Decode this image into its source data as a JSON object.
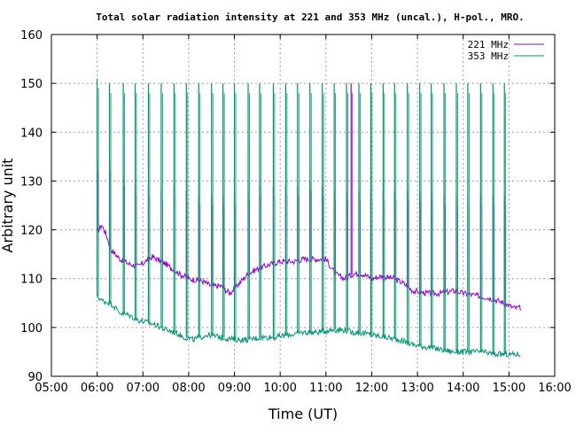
{
  "chart_data": {
    "type": "line",
    "title": "Total solar radiation intensity at 221 and 353 MHz (uncal.), H-pol., MRO.",
    "xlabel": "Time (UT)",
    "ylabel": "Arbitrary unit",
    "xlim": [
      5.0,
      16.0
    ],
    "ylim": [
      90,
      160
    ],
    "x_ticks": [
      "05:00",
      "06:00",
      "07:00",
      "08:00",
      "09:00",
      "10:00",
      "11:00",
      "12:00",
      "13:00",
      "14:00",
      "15:00",
      "16:00"
    ],
    "y_ticks": [
      "90",
      "100",
      "110",
      "120",
      "130",
      "140",
      "150",
      "160"
    ],
    "grid": true,
    "legend_position": "top-right",
    "series": [
      {
        "name": "221 MHz",
        "color": "#9400d3",
        "baseline": [
          [
            6.0,
            119.5
          ],
          [
            6.1,
            121
          ],
          [
            6.2,
            119
          ],
          [
            6.3,
            116
          ],
          [
            6.5,
            114
          ],
          [
            6.7,
            113
          ],
          [
            6.9,
            112.5
          ],
          [
            7.2,
            114.5
          ],
          [
            7.5,
            113
          ],
          [
            7.8,
            111
          ],
          [
            8.0,
            110
          ],
          [
            8.3,
            109.5
          ],
          [
            8.5,
            108.5
          ],
          [
            8.7,
            108.5
          ],
          [
            8.9,
            107
          ],
          [
            9.1,
            109
          ],
          [
            9.3,
            111
          ],
          [
            9.5,
            112
          ],
          [
            9.8,
            113
          ],
          [
            10.0,
            113.5
          ],
          [
            10.3,
            113.5
          ],
          [
            10.5,
            114
          ],
          [
            10.8,
            114
          ],
          [
            11.0,
            114
          ],
          [
            11.2,
            111
          ],
          [
            11.4,
            110
          ],
          [
            11.6,
            111
          ],
          [
            11.8,
            111
          ],
          [
            12.0,
            110
          ],
          [
            12.2,
            110.5
          ],
          [
            12.5,
            110
          ],
          [
            12.7,
            109
          ],
          [
            12.9,
            107.5
          ],
          [
            13.2,
            107
          ],
          [
            13.5,
            107
          ],
          [
            13.8,
            107.5
          ],
          [
            14.0,
            107
          ],
          [
            14.3,
            106.5
          ],
          [
            14.6,
            106
          ],
          [
            14.9,
            105
          ],
          [
            15.1,
            104
          ],
          [
            15.25,
            104
          ]
        ],
        "spike_times": [
          6.0,
          6.27,
          6.57,
          6.83,
          7.12,
          7.4,
          7.68,
          7.95,
          8.22,
          8.5,
          8.75,
          9.0,
          9.3,
          9.55,
          9.85,
          10.12,
          10.38,
          10.65,
          10.92,
          11.18,
          11.45,
          11.55,
          11.72,
          11.98,
          12.25,
          12.5,
          12.78,
          13.05,
          13.3,
          13.58,
          13.85,
          14.1,
          14.38,
          14.65,
          14.9
        ],
        "spike_peaks": [
          134,
          134,
          131,
          129,
          129,
          128,
          129,
          128,
          127,
          127,
          127,
          127,
          128,
          129,
          129,
          129,
          129,
          130,
          129,
          128,
          128,
          150,
          128,
          128,
          128,
          128,
          128,
          128,
          128,
          127,
          127,
          127,
          127,
          127,
          127
        ]
      },
      {
        "name": "353 MHz",
        "color": "#009473",
        "baseline": [
          [
            6.0,
            106.5
          ],
          [
            6.1,
            105.5
          ],
          [
            6.3,
            105
          ],
          [
            6.5,
            103
          ],
          [
            6.7,
            102.5
          ],
          [
            6.9,
            101.5
          ],
          [
            7.1,
            101
          ],
          [
            7.3,
            100.5
          ],
          [
            7.5,
            99.5
          ],
          [
            7.7,
            99
          ],
          [
            7.9,
            98
          ],
          [
            8.1,
            97.5
          ],
          [
            8.4,
            98.5
          ],
          [
            8.7,
            98
          ],
          [
            9.0,
            97.5
          ],
          [
            9.3,
            97.5
          ],
          [
            9.6,
            98
          ],
          [
            9.9,
            98
          ],
          [
            10.2,
            98.5
          ],
          [
            10.5,
            99
          ],
          [
            10.8,
            99
          ],
          [
            11.1,
            99.5
          ],
          [
            11.4,
            99.5
          ],
          [
            11.55,
            99
          ],
          [
            11.7,
            99
          ],
          [
            12.0,
            98.5
          ],
          [
            12.3,
            98
          ],
          [
            12.6,
            97.5
          ],
          [
            12.9,
            96.5
          ],
          [
            13.2,
            96
          ],
          [
            13.5,
            95.5
          ],
          [
            13.8,
            95
          ],
          [
            14.1,
            95
          ],
          [
            14.4,
            95
          ],
          [
            14.7,
            94.5
          ],
          [
            15.0,
            94.5
          ],
          [
            15.25,
            94.5
          ]
        ],
        "spike_times": [
          6.0,
          6.27,
          6.57,
          6.83,
          7.12,
          7.4,
          7.68,
          7.95,
          8.22,
          8.5,
          8.75,
          9.0,
          9.3,
          9.55,
          9.85,
          10.12,
          10.38,
          10.65,
          10.92,
          11.18,
          11.45,
          11.72,
          11.98,
          12.25,
          12.5,
          12.78,
          13.05,
          13.3,
          13.58,
          13.85,
          14.1,
          14.38,
          14.65,
          14.9
        ],
        "spike_peaks": [
          151,
          150,
          150,
          150,
          150,
          150,
          150,
          150,
          150,
          150,
          150,
          150,
          150,
          150,
          150,
          150,
          150,
          150,
          150,
          150,
          150,
          150,
          150,
          150,
          150,
          150,
          150,
          150,
          150,
          150,
          150,
          150,
          150,
          150
        ]
      }
    ]
  }
}
